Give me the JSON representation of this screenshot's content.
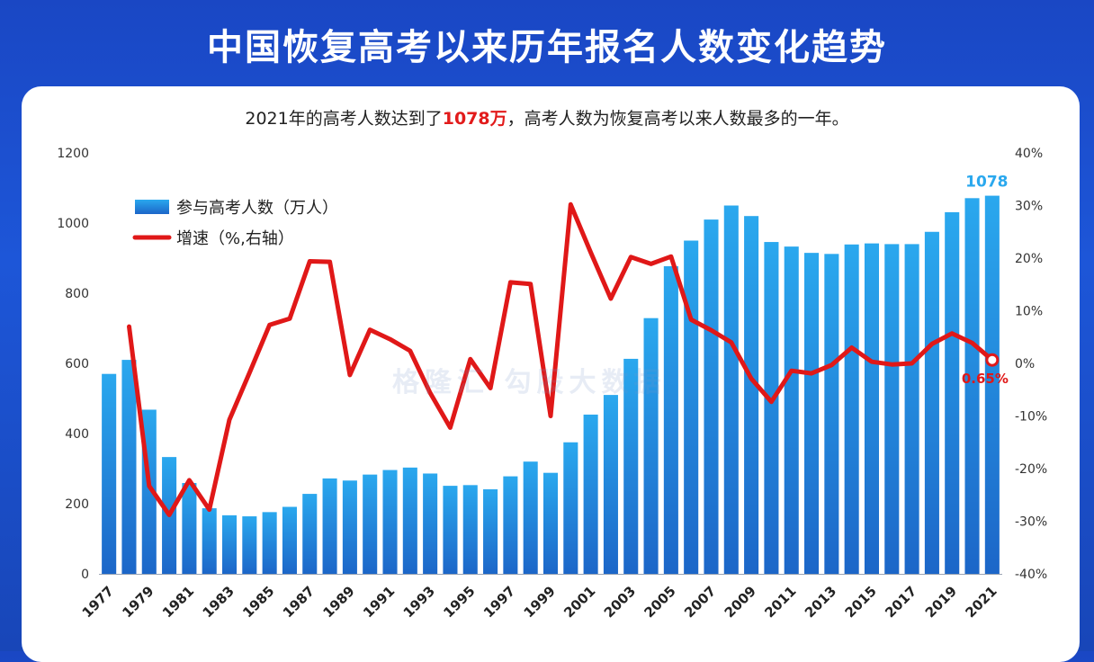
{
  "header": {
    "title": "中国恢复高考以来历年报名人数变化趋势"
  },
  "subtitle": {
    "before": "2021年的高考人数达到了",
    "highlight": "1078万",
    "after": "，高考人数为恢复高考以来人数最多的一年。"
  },
  "watermark": "格隆汇  勾股大数据",
  "chart_data": {
    "type": "bar",
    "categories": [
      "1977",
      "1978",
      "1979",
      "1980",
      "1981",
      "1982",
      "1983",
      "1984",
      "1985",
      "1986",
      "1987",
      "1988",
      "1989",
      "1990",
      "1991",
      "1992",
      "1993",
      "1994",
      "1995",
      "1996",
      "1997",
      "1998",
      "1999",
      "2000",
      "2001",
      "2002",
      "2003",
      "2004",
      "2005",
      "2006",
      "2007",
      "2008",
      "2009",
      "2010",
      "2011",
      "2012",
      "2013",
      "2014",
      "2015",
      "2016",
      "2017",
      "2018",
      "2019",
      "2020",
      "2021"
    ],
    "x_tick_labels": [
      "1977",
      "1979",
      "1981",
      "1983",
      "1985",
      "1987",
      "1989",
      "1991",
      "1993",
      "1995",
      "1997",
      "1999",
      "2001",
      "2003",
      "2005",
      "2007",
      "2009",
      "2011",
      "2013",
      "2015",
      "2017",
      "2019",
      "2021"
    ],
    "series": [
      {
        "name": "参与高考人数（万人）",
        "type": "bar",
        "axis": "left",
        "values": [
          570,
          610,
          468,
          333,
          259,
          187,
          167,
          164,
          176,
          191,
          228,
          272,
          266,
          283,
          296,
          303,
          286,
          251,
          253,
          241,
          278,
          320,
          288,
          375,
          454,
          510,
          613,
          729,
          877,
          950,
          1010,
          1050,
          1020,
          946,
          933,
          915,
          912,
          939,
          942,
          940,
          940,
          975,
          1031,
          1071,
          1078
        ]
      },
      {
        "name": "增速（%,右轴）",
        "type": "line",
        "axis": "right",
        "values": [
          null,
          7.0,
          -23.3,
          -28.8,
          -22.2,
          -27.8,
          -10.7,
          -1.8,
          7.3,
          8.5,
          19.4,
          19.3,
          -2.2,
          6.4,
          4.6,
          2.4,
          -5.6,
          -12.2,
          0.8,
          -4.7,
          15.4,
          15.1,
          -10.0,
          30.2,
          21.1,
          12.3,
          20.2,
          18.9,
          20.3,
          8.3,
          6.3,
          4.0,
          -2.9,
          -7.3,
          -1.4,
          -1.9,
          -0.3,
          3.0,
          0.3,
          -0.2,
          0.0,
          3.7,
          5.7,
          3.9,
          0.65
        ]
      }
    ],
    "ylim_left": [
      0,
      1200
    ],
    "yticks_left": [
      0,
      200,
      400,
      600,
      800,
      1000,
      1200
    ],
    "ylim_right": [
      -40,
      40
    ],
    "yticks_right": [
      "-40%",
      "-30%",
      "-20%",
      "-10%",
      "0%",
      "10%",
      "20%",
      "30%",
      "40%"
    ],
    "annotations": {
      "last_bar_label": "1078",
      "last_point_label": "0.65%"
    },
    "legend_placement": "top-left",
    "grid": false,
    "colors": {
      "bar_top": "#2aa8ee",
      "bar_bottom": "#1c66c8",
      "line": "#e01818",
      "bar_label": "#2aa8ee",
      "point_label": "#e01818"
    }
  }
}
